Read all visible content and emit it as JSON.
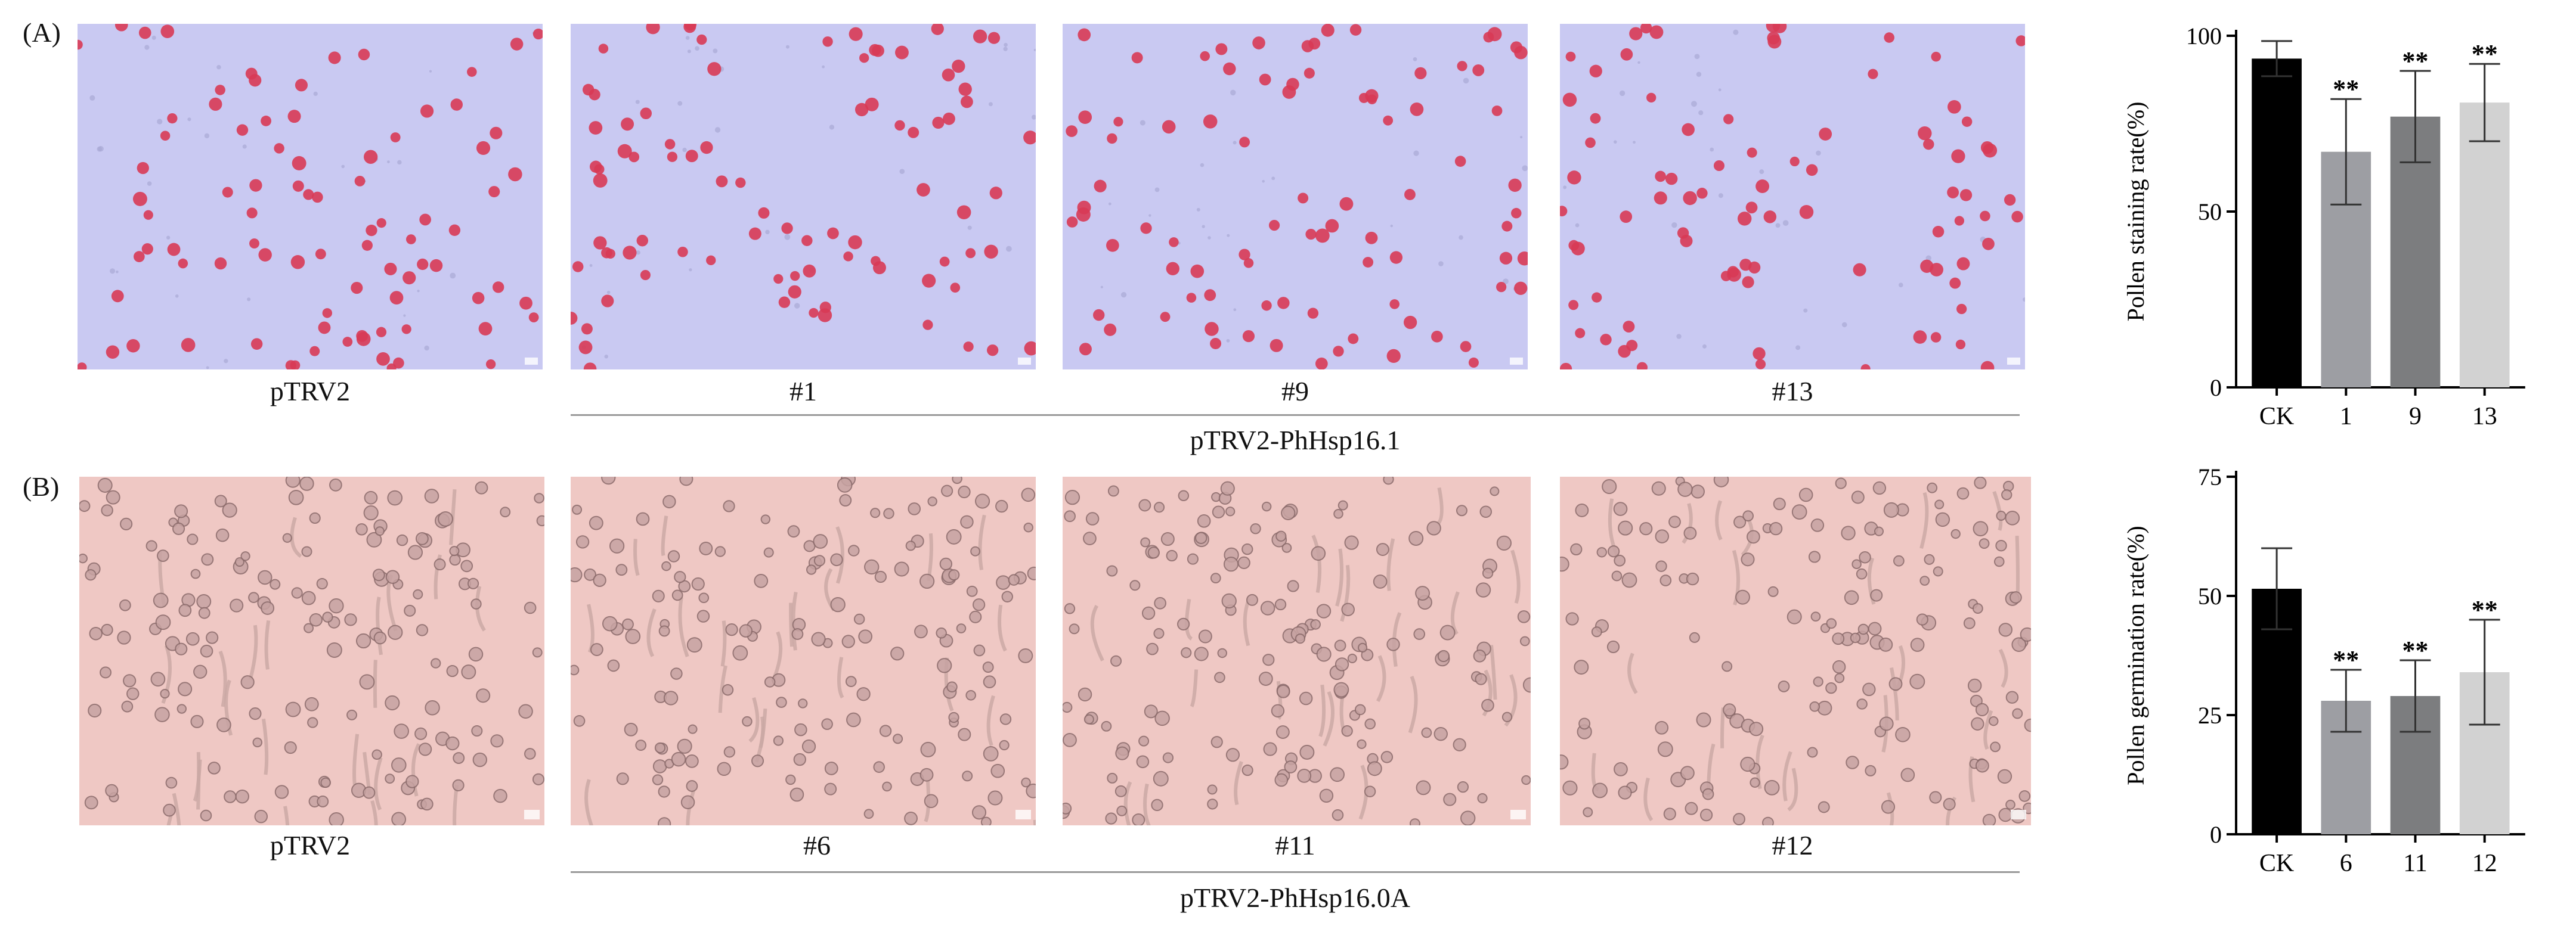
{
  "panel_a": {
    "label": "(A)",
    "images": [
      {
        "caption": "pTRV2",
        "kind": "staining",
        "seed": 11
      },
      {
        "caption": "#1",
        "kind": "staining",
        "seed": 23
      },
      {
        "caption": "#9",
        "kind": "staining",
        "seed": 37
      },
      {
        "caption": "#13",
        "kind": "staining",
        "seed": 51
      }
    ],
    "group_caption": "pTRV2-PhHsp16.1"
  },
  "panel_b": {
    "label": "(B)",
    "images": [
      {
        "caption": "pTRV2",
        "kind": "germination",
        "seed": 61
      },
      {
        "caption": "#6",
        "kind": "germination",
        "seed": 73
      },
      {
        "caption": "#11",
        "kind": "germination",
        "seed": 89
      },
      {
        "caption": "#12",
        "kind": "germination",
        "seed": 97
      }
    ],
    "group_caption": "pTRV2-PhHsp16.0A"
  },
  "colors": {
    "staining_bg": "#c9c9f2",
    "stained_pollen": "#d83a55",
    "germ_bg": "#efc8c4",
    "germ_pollen": "#8a6a6a",
    "bar_colors": [
      "#000000",
      "#9d9ea3",
      "#7c7d7f",
      "#d2d2d2"
    ]
  },
  "chart_data": [
    {
      "type": "bar",
      "title": "",
      "xlabel": "",
      "ylabel": "Pollen staining rate(%)",
      "categories": [
        "CK",
        "1",
        "9",
        "13"
      ],
      "values": [
        93.5,
        67,
        77,
        81
      ],
      "errors": [
        5,
        15,
        13,
        11
      ],
      "significance": [
        "",
        "**",
        "**",
        "**"
      ],
      "ylim": [
        0,
        100
      ],
      "yticks": [
        0,
        50,
        100
      ],
      "grid": false
    },
    {
      "type": "bar",
      "title": "",
      "xlabel": "",
      "ylabel": "Pollen germination rate(%)",
      "categories": [
        "CK",
        "6",
        "11",
        "12"
      ],
      "values": [
        51.5,
        28,
        29,
        34
      ],
      "errors": [
        8.5,
        6.5,
        7.5,
        11
      ],
      "significance": [
        "",
        "**",
        "**",
        "**"
      ],
      "ylim": [
        0,
        75
      ],
      "yticks": [
        0,
        25,
        50,
        75
      ],
      "grid": false
    }
  ]
}
